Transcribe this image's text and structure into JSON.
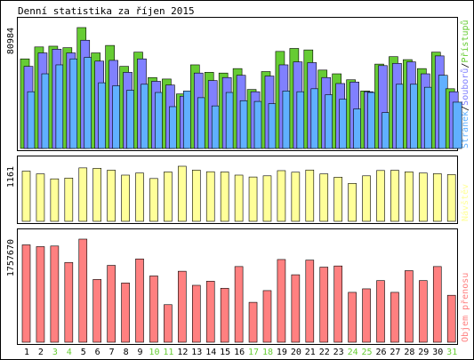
{
  "chart_data": {
    "type": "bar",
    "title": "Denní statistika za říjen 2015",
    "categories": [
      "1",
      "2",
      "3",
      "4",
      "5",
      "6",
      "7",
      "8",
      "9",
      "10",
      "11",
      "12",
      "13",
      "14",
      "15",
      "16",
      "17",
      "18",
      "19",
      "20",
      "21",
      "22",
      "23",
      "24",
      "25",
      "26",
      "27",
      "28",
      "29",
      "30",
      "31"
    ],
    "weekend_days": [
      "3",
      "4",
      "10",
      "11",
      "17",
      "18",
      "24",
      "25",
      "31"
    ],
    "panels": [
      {
        "name": "traffic",
        "ymax_label": "80984",
        "ymax": 80984,
        "legend": [
          "Stránek",
          "Souborů",
          "Přístupů"
        ],
        "series": [
          {
            "name": "Přístupů",
            "color": "#66cc33",
            "values": [
              60000,
              68000,
              68500,
              67500,
              80984,
              64000,
              69000,
              55000,
              64500,
              47500,
              46500,
              36500,
              56000,
              51000,
              50500,
              53500,
              39500,
              51500,
              65000,
              67000,
              66000,
              52500,
              50000,
              46000,
              38500,
              56500,
              61500,
              59500,
              53500,
              64500,
              40000
            ]
          },
          {
            "name": "Souborů",
            "color": "#8080ff",
            "values": [
              55000,
              64000,
              66500,
              64000,
              72500,
              58500,
              59000,
              51000,
              60000,
              45000,
              42500,
              35000,
              50500,
              45500,
              47500,
              49000,
              38000,
              48500,
              56000,
              58000,
              57500,
              47500,
              43500,
              44500,
              38000,
              55500,
              57000,
              58000,
              50000,
              62000,
              38000
            ]
          },
          {
            "name": "Stránek",
            "color": "#60b0ff",
            "values": [
              38000,
              50000,
              56000,
              60000,
              61000,
              44000,
              42000,
              39000,
              43000,
              37500,
              28000,
              38500,
              34000,
              28500,
              37500,
              32000,
              31500,
              30000,
              38500,
              38000,
              40000,
              36000,
              33000,
              26500,
              37500,
              24000,
              43000,
              43000,
              41000,
              49000,
              31000
            ]
          }
        ]
      },
      {
        "name": "visits",
        "ymax_label": "1161",
        "ymax": 1161,
        "legend": [
          "Návštěv"
        ],
        "series": [
          {
            "name": "Návštěv",
            "color": "#ffff99",
            "values": [
              1058,
              1000,
              895,
              912,
              1126,
              1117,
              1078,
              974,
              1018,
              902,
              1040,
              1161,
              1079,
              1045,
              1040,
              974,
              934,
              959,
              1068,
              1035,
              1081,
              1000,
              930,
              799,
              959,
              1071,
              1076,
              1043,
              1018,
              1005,
              985
            ]
          }
        ]
      },
      {
        "name": "volume",
        "ymax_label": "1757670",
        "ymax": 1757670,
        "legend": [
          "Objem přenosu"
        ],
        "series": [
          {
            "name": "Objem přenosu",
            "color": "#ff8080",
            "values": [
              1660000,
              1630000,
              1640000,
              1360000,
              1757670,
              1070000,
              1310000,
              1010000,
              1420000,
              1130000,
              640000,
              1210000,
              970000,
              1040000,
              920000,
              1290000,
              680000,
              880000,
              1410000,
              1150000,
              1400000,
              1280000,
              1300000,
              850000,
              910000,
              1050000,
              850000,
              1220000,
              1050000,
              1290000,
              800000
            ]
          }
        ]
      }
    ]
  },
  "colors": {
    "background": "#ffffff",
    "border": "#000000",
    "weekday_label": "#000000",
    "weekend_label": "#66cc33",
    "legend_sep": "#000000"
  }
}
